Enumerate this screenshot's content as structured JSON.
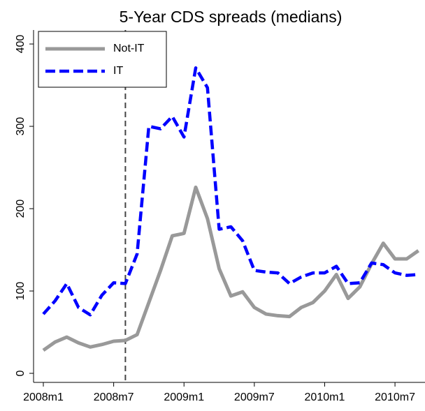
{
  "chart_data": {
    "type": "line",
    "title": "5-Year CDS spreads (medians)",
    "x": [
      0,
      1,
      2,
      3,
      4,
      5,
      6,
      7,
      8,
      9,
      10,
      11,
      12,
      13,
      14,
      15,
      16,
      17,
      18,
      19,
      20,
      21,
      22,
      23,
      24,
      25,
      26,
      27,
      28,
      29,
      30,
      31,
      32
    ],
    "xlim": [
      -0.835,
      32.56
    ],
    "xticks": [
      {
        "value": 0,
        "label": "2008m1"
      },
      {
        "value": 6,
        "label": "2008m7"
      },
      {
        "value": 12,
        "label": "2009m1"
      },
      {
        "value": 18,
        "label": "2009m7"
      },
      {
        "value": 24,
        "label": "2010m1"
      },
      {
        "value": 30,
        "label": "2010m7"
      }
    ],
    "ylim": [
      -11,
      417
    ],
    "yticks": [
      0,
      100,
      200,
      300,
      400
    ],
    "vline": 7,
    "legend": "top-left",
    "series": [
      {
        "name": "Not-IT",
        "color": "#999999",
        "dash": false,
        "values": [
          28,
          38,
          44,
          37,
          32,
          35,
          39,
          40,
          47,
          86,
          125,
          167,
          170,
          226,
          188,
          127,
          94,
          99,
          80,
          72,
          70,
          69,
          80,
          86,
          100,
          120,
          91,
          105,
          133,
          158,
          139,
          139,
          149
        ]
      },
      {
        "name": "IT",
        "color": "#0000ff",
        "dash": true,
        "values": [
          72,
          88,
          109,
          80,
          71,
          95,
          110,
          109,
          145,
          300,
          297,
          312,
          287,
          371,
          347,
          175,
          178,
          161,
          125,
          123,
          122,
          109,
          117,
          122,
          122,
          130,
          109,
          110,
          134,
          132,
          122,
          119,
          120
        ]
      }
    ]
  }
}
